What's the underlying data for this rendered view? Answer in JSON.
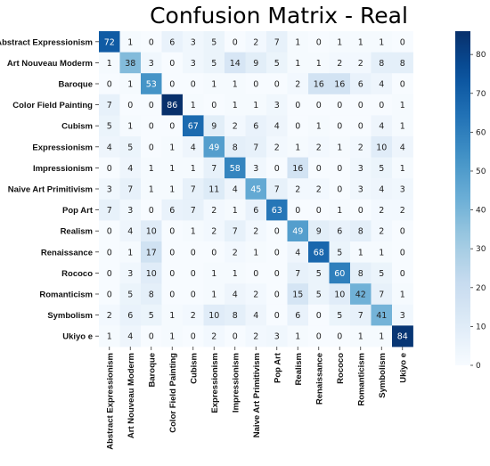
{
  "chart_data": {
    "type": "heatmap",
    "title": "Confusion Matrix - Real",
    "xlabel": "",
    "ylabel": "",
    "labels": [
      "Abstract Expressionism",
      "Art Nouveau Moderm",
      "Baroque",
      "Color Field Painting",
      "Cubism",
      "Expressionism",
      "Impressionism",
      "Naive Art Primitivism",
      "Pop Art",
      "Realism",
      "Renaissance",
      "Rococo",
      "Romanticism",
      "Symbolism",
      "Ukiyo e"
    ],
    "matrix": [
      [
        72,
        1,
        0,
        6,
        3,
        5,
        0,
        2,
        7,
        1,
        0,
        1,
        1,
        1,
        0
      ],
      [
        1,
        38,
        3,
        0,
        3,
        5,
        14,
        9,
        5,
        1,
        1,
        2,
        2,
        8,
        8
      ],
      [
        0,
        1,
        53,
        0,
        0,
        1,
        1,
        0,
        0,
        2,
        16,
        16,
        6,
        4,
        0
      ],
      [
        7,
        0,
        0,
        86,
        1,
        0,
        1,
        1,
        3,
        0,
        0,
        0,
        0,
        0,
        1
      ],
      [
        5,
        1,
        0,
        0,
        67,
        9,
        2,
        6,
        4,
        0,
        1,
        0,
        0,
        4,
        1
      ],
      [
        4,
        5,
        0,
        1,
        4,
        49,
        8,
        7,
        2,
        1,
        2,
        1,
        2,
        10,
        4
      ],
      [
        0,
        4,
        1,
        1,
        1,
        7,
        58,
        3,
        0,
        16,
        0,
        0,
        3,
        5,
        1
      ],
      [
        3,
        7,
        1,
        1,
        7,
        11,
        4,
        45,
        7,
        2,
        2,
        0,
        3,
        4,
        3
      ],
      [
        7,
        3,
        0,
        6,
        7,
        2,
        1,
        6,
        63,
        0,
        0,
        1,
        0,
        2,
        2
      ],
      [
        0,
        4,
        10,
        0,
        1,
        2,
        7,
        2,
        0,
        49,
        9,
        6,
        8,
        2,
        0
      ],
      [
        0,
        1,
        17,
        0,
        0,
        0,
        2,
        1,
        0,
        4,
        68,
        5,
        1,
        1,
        0
      ],
      [
        0,
        3,
        10,
        0,
        0,
        1,
        1,
        0,
        0,
        7,
        5,
        60,
        8,
        5,
        0
      ],
      [
        0,
        5,
        8,
        0,
        0,
        1,
        4,
        2,
        0,
        15,
        5,
        10,
        42,
        7,
        1
      ],
      [
        2,
        6,
        5,
        1,
        2,
        10,
        8,
        4,
        0,
        6,
        0,
        5,
        7,
        41,
        3
      ],
      [
        1,
        4,
        0,
        1,
        0,
        2,
        0,
        2,
        3,
        1,
        0,
        0,
        1,
        1,
        84
      ]
    ],
    "colorbar": {
      "min": 0,
      "max": 86,
      "ticks": [
        0,
        10,
        20,
        30,
        40,
        50,
        60,
        70,
        80
      ]
    },
    "colormap": "Blues",
    "colors": {
      "low": "#f7fbff",
      "high": "#08306b"
    }
  }
}
